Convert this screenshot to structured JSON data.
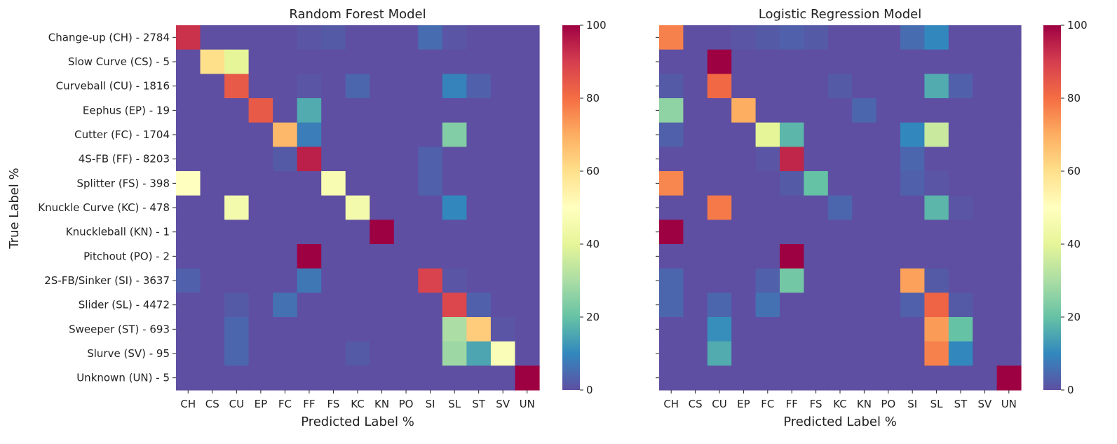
{
  "chart_data": [
    {
      "type": "heatmap",
      "title": "Random Forest Model",
      "xlabel": "Predicted Label %",
      "ylabel": "True Label %",
      "x_categories": [
        "CH",
        "CS",
        "CU",
        "EP",
        "FC",
        "FF",
        "FS",
        "KC",
        "KN",
        "PO",
        "SI",
        "SL",
        "ST",
        "SV",
        "UN"
      ],
      "y_categories": [
        "Change-up (CH) - 2784",
        "Slow Curve (CS) - 5",
        "Curveball (CU) - 1816",
        "Eephus (EP) - 19",
        "Cutter (FC) - 1704",
        "4S-FB (FF) - 8203",
        "Splitter (FS) - 398",
        "Knuckle Curve (KC) - 478",
        "Knuckleball (KN) - 1",
        "Pitchout (PO) - 2",
        "2S-FB/Sinker (SI) - 3637",
        "Slider (SL) - 4472",
        "Sweeper (ST) - 693",
        "Slurve (SV) - 95",
        "Unknown (UN) - 5"
      ],
      "values": [
        [
          92,
          0,
          0,
          0,
          0,
          1,
          2,
          0,
          0,
          0,
          5,
          1,
          0,
          0,
          0
        ],
        [
          0,
          60,
          40,
          0,
          0,
          0,
          0,
          0,
          0,
          0,
          0,
          0,
          0,
          0,
          0
        ],
        [
          0,
          0,
          84,
          0,
          0,
          1,
          0,
          4,
          0,
          0,
          0,
          9,
          3,
          0,
          0
        ],
        [
          0,
          0,
          0,
          84,
          0,
          16,
          0,
          0,
          0,
          0,
          0,
          0,
          0,
          0,
          0
        ],
        [
          0,
          0,
          0,
          0,
          68,
          8,
          0,
          0,
          0,
          0,
          0,
          24,
          0,
          0,
          0
        ],
        [
          0,
          0,
          0,
          0,
          2,
          95,
          0,
          0,
          0,
          0,
          3,
          0,
          0,
          0,
          0
        ],
        [
          50,
          0,
          0,
          0,
          0,
          0,
          47,
          0,
          0,
          0,
          3,
          0,
          0,
          0,
          0
        ],
        [
          0,
          0,
          45,
          0,
          0,
          0,
          0,
          45,
          0,
          0,
          0,
          10,
          0,
          0,
          0
        ],
        [
          0,
          0,
          0,
          0,
          0,
          0,
          0,
          0,
          100,
          0,
          0,
          0,
          0,
          0,
          0
        ],
        [
          0,
          0,
          0,
          0,
          0,
          100,
          0,
          0,
          0,
          0,
          0,
          0,
          0,
          0,
          0
        ],
        [
          3,
          0,
          0,
          0,
          0,
          7,
          0,
          0,
          0,
          0,
          89,
          1,
          0,
          0,
          0
        ],
        [
          0,
          0,
          2,
          0,
          6,
          0,
          0,
          0,
          0,
          0,
          0,
          88,
          3,
          0,
          0
        ],
        [
          0,
          0,
          4,
          0,
          0,
          0,
          0,
          0,
          0,
          0,
          0,
          30,
          64,
          1,
          0
        ],
        [
          0,
          0,
          4,
          0,
          0,
          0,
          0,
          2,
          0,
          0,
          0,
          28,
          15,
          48,
          0
        ],
        [
          0,
          0,
          0,
          0,
          0,
          0,
          0,
          0,
          0,
          0,
          0,
          0,
          0,
          0,
          100
        ]
      ],
      "colorbar": {
        "min": 0,
        "max": 100,
        "ticks": [
          0,
          20,
          40,
          60,
          80,
          100
        ]
      }
    },
    {
      "type": "heatmap",
      "title": "Logistic Regression Model",
      "xlabel": "Predicted Label %",
      "ylabel": "",
      "x_categories": [
        "CH",
        "CS",
        "CU",
        "EP",
        "FC",
        "FF",
        "FS",
        "KC",
        "KN",
        "PO",
        "SI",
        "SL",
        "ST",
        "SV",
        "UN"
      ],
      "y_categories": [],
      "values": [
        [
          77,
          0,
          0,
          1,
          2,
          3,
          2,
          0,
          0,
          0,
          5,
          10,
          0,
          0,
          0
        ],
        [
          0,
          0,
          100,
          0,
          0,
          0,
          0,
          0,
          0,
          0,
          0,
          0,
          0,
          0,
          0
        ],
        [
          2,
          0,
          81,
          0,
          0,
          0,
          0,
          2,
          0,
          0,
          0,
          16,
          3,
          0,
          0
        ],
        [
          26,
          0,
          0,
          70,
          0,
          0,
          0,
          0,
          4,
          0,
          0,
          0,
          0,
          0,
          0
        ],
        [
          3,
          0,
          0,
          0,
          40,
          18,
          0,
          0,
          0,
          0,
          10,
          35,
          0,
          0,
          0
        ],
        [
          0,
          0,
          0,
          0,
          1,
          94,
          0,
          0,
          0,
          0,
          4,
          0,
          0,
          0,
          0
        ],
        [
          76,
          0,
          0,
          0,
          0,
          2,
          20,
          0,
          0,
          0,
          3,
          1,
          0,
          0,
          0
        ],
        [
          0,
          0,
          78,
          0,
          0,
          0,
          0,
          4,
          0,
          0,
          0,
          18,
          1,
          0,
          0
        ],
        [
          100,
          0,
          0,
          0,
          0,
          0,
          0,
          0,
          0,
          0,
          0,
          0,
          0,
          0,
          0
        ],
        [
          0,
          0,
          0,
          0,
          0,
          100,
          0,
          0,
          0,
          0,
          0,
          0,
          0,
          0,
          0
        ],
        [
          4,
          0,
          0,
          0,
          3,
          22,
          0,
          0,
          0,
          0,
          72,
          2,
          0,
          0,
          0
        ],
        [
          4,
          0,
          4,
          0,
          6,
          0,
          0,
          0,
          0,
          0,
          3,
          82,
          2,
          0,
          0
        ],
        [
          0,
          0,
          11,
          0,
          0,
          0,
          0,
          0,
          0,
          0,
          0,
          73,
          20,
          0,
          0
        ],
        [
          0,
          0,
          16,
          0,
          0,
          0,
          0,
          0,
          0,
          0,
          0,
          77,
          10,
          0,
          0
        ],
        [
          0,
          0,
          0,
          0,
          0,
          0,
          0,
          0,
          0,
          0,
          0,
          0,
          0,
          0,
          100
        ]
      ],
      "colorbar": {
        "min": 0,
        "max": 100,
        "ticks": [
          0,
          20,
          40,
          60,
          80,
          100
        ]
      }
    }
  ]
}
